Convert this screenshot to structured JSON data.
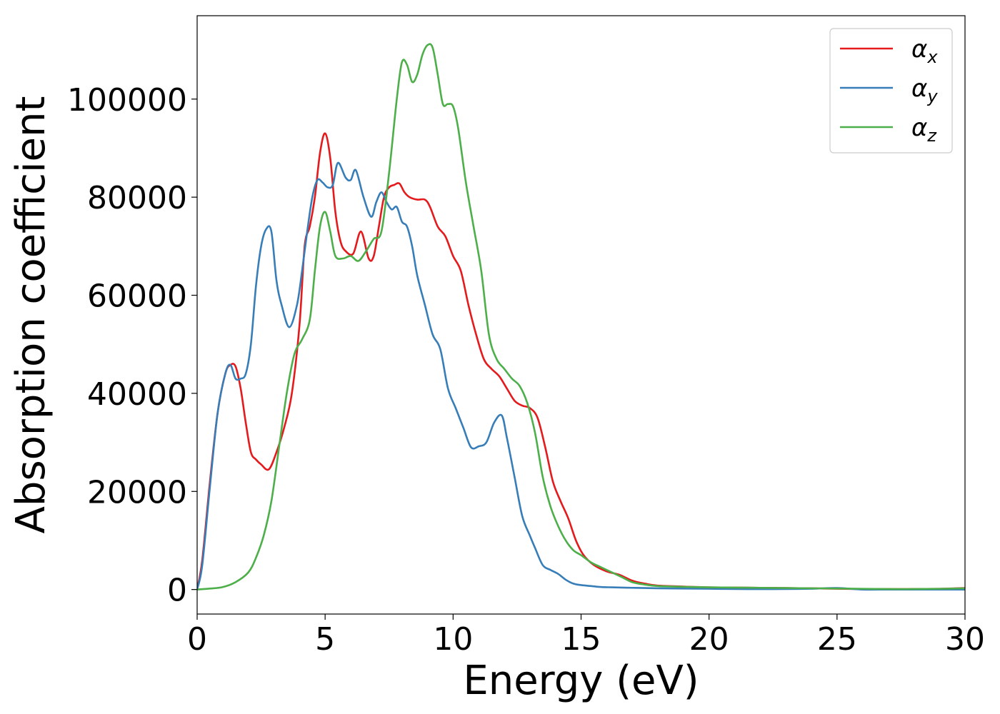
{
  "chart_data": {
    "type": "line",
    "xlabel": "Energy (eV)",
    "ylabel": "Absorption coefficient",
    "xlim": [
      0,
      30
    ],
    "ylim": [
      -5000,
      117000
    ],
    "xticks": [
      0,
      5,
      10,
      15,
      20,
      25,
      30
    ],
    "yticks": [
      0,
      20000,
      40000,
      60000,
      80000,
      100000
    ],
    "grid": false,
    "legend_position": "top-right",
    "series": [
      {
        "name": "αx",
        "legend_symbol": "α",
        "legend_subscript": "x",
        "color": "#e41a1c",
        "x": [
          0,
          0.2,
          0.5,
          0.8,
          1.1,
          1.3,
          1.5,
          1.7,
          1.9,
          2.1,
          2.3,
          2.5,
          2.8,
          3.1,
          3.4,
          3.7,
          4.0,
          4.2,
          4.4,
          4.6,
          4.8,
          5.0,
          5.2,
          5.4,
          5.6,
          5.8,
          6.1,
          6.4,
          6.7,
          6.9,
          7.1,
          7.3,
          7.5,
          7.7,
          7.9,
          8.1,
          8.3,
          8.6,
          8.9,
          9.1,
          9.4,
          9.7,
          10.0,
          10.3,
          10.6,
          10.9,
          11.2,
          11.5,
          11.8,
          12.1,
          12.4,
          12.7,
          13.0,
          13.3,
          13.6,
          13.9,
          14.2,
          14.5,
          14.8,
          15.1,
          15.5,
          16.0,
          16.5,
          17.0,
          17.5,
          18.0,
          19.0,
          20.0,
          21.0,
          22.0,
          23.0,
          24.0,
          25.0,
          26.0,
          27.0,
          28.0,
          29.0,
          30.0
        ],
        "y": [
          0,
          6000,
          22000,
          36000,
          44000,
          45800,
          45500,
          41000,
          34000,
          28000,
          26500,
          25500,
          24500,
          28000,
          33000,
          40000,
          54000,
          70000,
          74000,
          80000,
          89000,
          93000,
          88000,
          77000,
          71000,
          69000,
          68500,
          73000,
          67500,
          68000,
          74000,
          80000,
          82000,
          82500,
          82800,
          81000,
          80000,
          79500,
          79500,
          78000,
          74000,
          72000,
          68000,
          65000,
          58000,
          52000,
          47000,
          45000,
          43500,
          41000,
          38500,
          37500,
          37000,
          35000,
          29000,
          22000,
          18000,
          14500,
          10000,
          7000,
          5000,
          3700,
          3000,
          1800,
          1200,
          800,
          600,
          450,
          400,
          350,
          300,
          250,
          150,
          100,
          80,
          100,
          150,
          300
        ]
      },
      {
        "name": "αy",
        "legend_symbol": "α",
        "legend_subscript": "y",
        "color": "#377eb8",
        "x": [
          0,
          0.2,
          0.5,
          0.8,
          1.1,
          1.3,
          1.5,
          1.7,
          1.9,
          2.1,
          2.3,
          2.5,
          2.7,
          2.9,
          3.1,
          3.3,
          3.6,
          3.9,
          4.1,
          4.3,
          4.5,
          4.7,
          4.9,
          5.1,
          5.3,
          5.5,
          5.8,
          6.0,
          6.2,
          6.5,
          6.8,
          7.0,
          7.2,
          7.4,
          7.6,
          7.8,
          8.0,
          8.2,
          8.4,
          8.6,
          8.9,
          9.2,
          9.5,
          9.8,
          10.1,
          10.4,
          10.7,
          11.0,
          11.3,
          11.6,
          11.9,
          12.1,
          12.4,
          12.7,
          13.0,
          13.2,
          13.5,
          13.8,
          14.1,
          14.4,
          14.7,
          15.0,
          15.4,
          15.8,
          16.2,
          16.6,
          17.0,
          17.5,
          18.0,
          19.0,
          20.0,
          21.0,
          22.0,
          23.0,
          24.0,
          25.0,
          26.0,
          27.0,
          28.0,
          29.0,
          30.0
        ],
        "y": [
          0,
          5000,
          21000,
          36000,
          44000,
          45800,
          43000,
          43000,
          44000,
          50000,
          62000,
          70000,
          73500,
          73000,
          63000,
          58000,
          53500,
          58000,
          65000,
          73000,
          80000,
          83500,
          83000,
          82000,
          82500,
          87000,
          84000,
          83500,
          85500,
          80000,
          76000,
          79000,
          81000,
          79000,
          77500,
          78000,
          75000,
          74000,
          70000,
          64000,
          58000,
          52000,
          49000,
          41000,
          37000,
          33000,
          29000,
          29200,
          30000,
          34000,
          35500,
          31000,
          23000,
          15000,
          11000,
          8500,
          5000,
          4000,
          3200,
          2000,
          1200,
          900,
          700,
          500,
          450,
          400,
          350,
          300,
          250,
          200,
          150,
          100,
          80,
          100,
          150,
          300,
          0,
          0,
          0,
          0,
          0
        ],
        "x_override_note": ""
      },
      {
        "name": "αz",
        "legend_symbol": "α",
        "legend_subscript": "z",
        "color": "#4daf4a",
        "x": [
          0,
          0.5,
          1.0,
          1.5,
          2.0,
          2.3,
          2.6,
          2.9,
          3.2,
          3.5,
          3.8,
          4.1,
          4.4,
          4.6,
          4.8,
          5.0,
          5.2,
          5.4,
          5.7,
          6.0,
          6.3,
          6.6,
          6.9,
          7.2,
          7.5,
          7.8,
          8.0,
          8.2,
          8.4,
          8.6,
          8.8,
          9.0,
          9.2,
          9.4,
          9.6,
          9.8,
          10.0,
          10.2,
          10.5,
          10.8,
          11.1,
          11.4,
          11.7,
          12.0,
          12.3,
          12.6,
          12.9,
          13.2,
          13.5,
          13.8,
          14.1,
          14.4,
          14.7,
          15.0,
          15.4,
          15.8,
          16.2,
          16.6,
          17.0,
          17.5,
          18.0,
          19.0,
          20.0,
          21.0,
          22.0,
          23.0,
          24.0,
          25.0,
          26.0,
          27.0,
          28.0,
          29.0,
          30.0
        ],
        "y": [
          0,
          200,
          500,
          1500,
          3500,
          6500,
          11000,
          18000,
          29000,
          40000,
          48000,
          51000,
          55000,
          65000,
          74000,
          77000,
          73000,
          68000,
          67500,
          68000,
          67000,
          69000,
          71500,
          73000,
          85000,
          100000,
          107500,
          107000,
          103500,
          105000,
          109000,
          111000,
          110500,
          105000,
          99000,
          99000,
          98500,
          94000,
          83000,
          74000,
          65000,
          52000,
          47000,
          45000,
          43000,
          41500,
          38000,
          32000,
          23000,
          17000,
          13000,
          10000,
          8000,
          7000,
          5500,
          4500,
          3500,
          2500,
          1500,
          1000,
          700,
          550,
          450,
          400,
          350,
          300,
          250,
          200,
          150,
          100,
          100,
          150,
          250
        ]
      }
    ]
  }
}
